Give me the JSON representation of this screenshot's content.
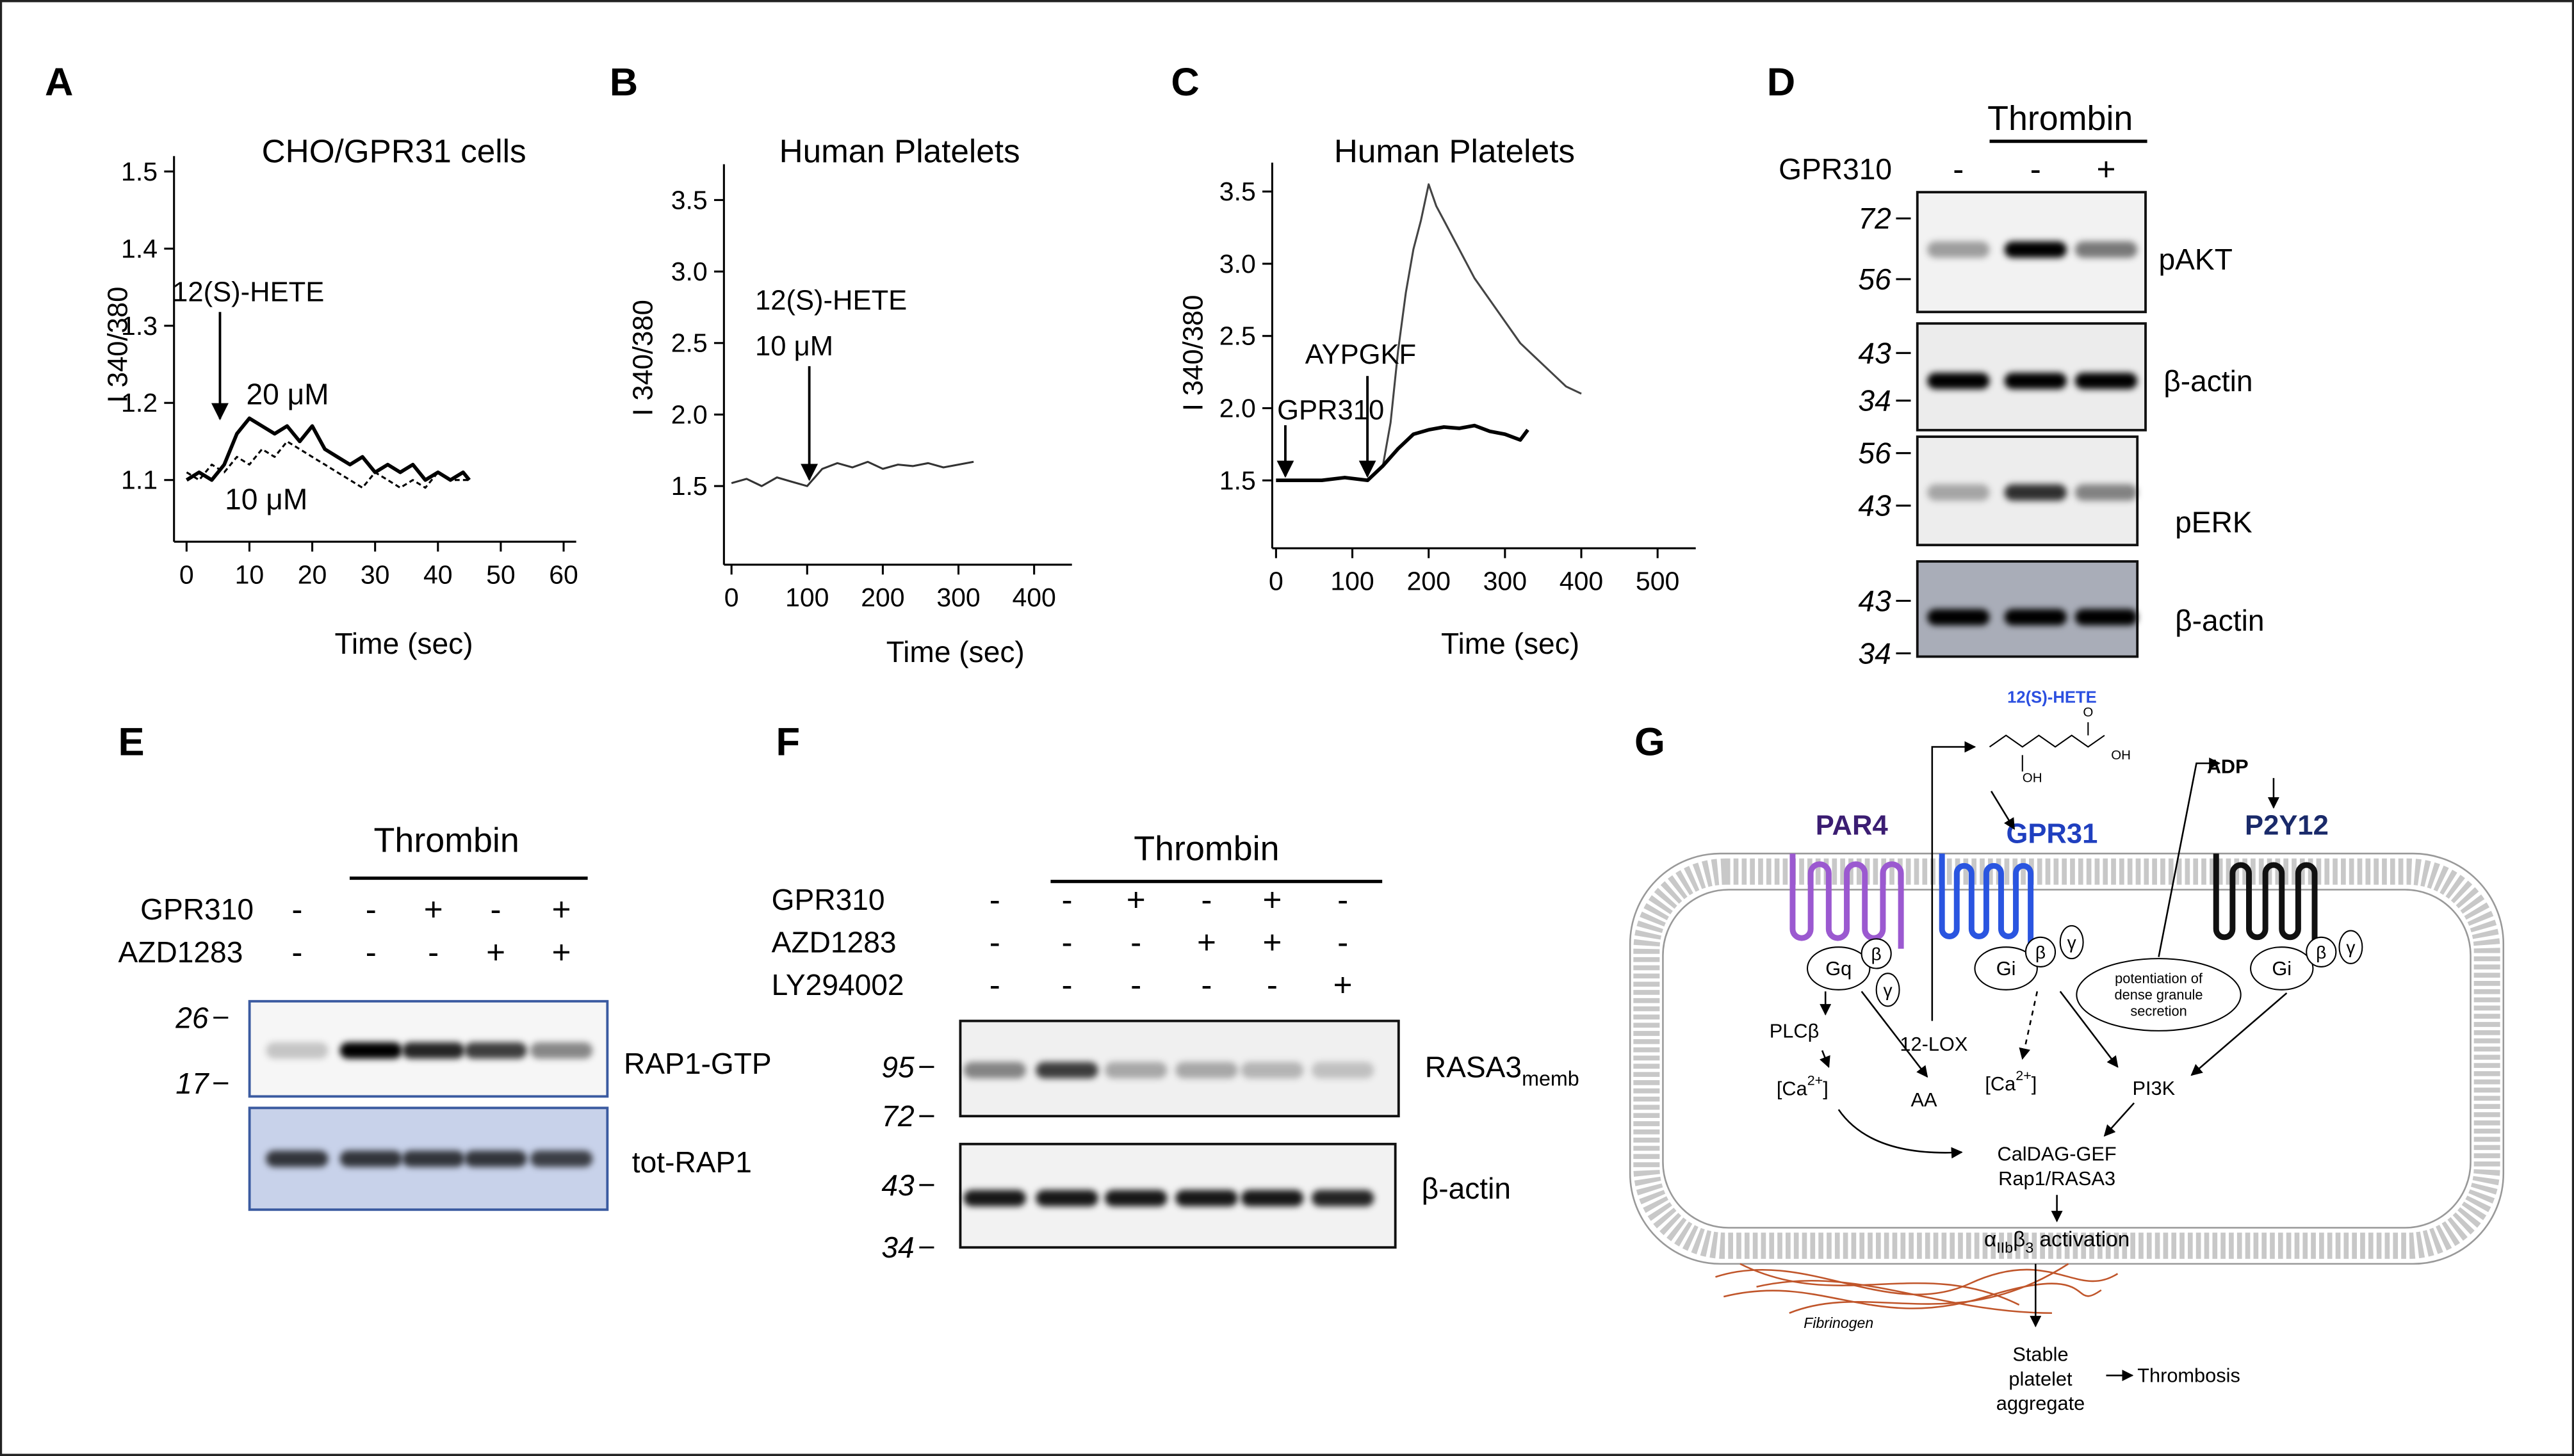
{
  "chart_data": [
    {
      "panel": "A",
      "type": "line",
      "title": "CHO/GPR31 cells",
      "xlabel": "Time (sec)",
      "ylabel": "I 340/380",
      "xlim": [
        -2,
        62
      ],
      "ylim": [
        1.02,
        1.52
      ],
      "xticks": [
        0,
        10,
        20,
        30,
        40,
        50,
        60
      ],
      "yticks": [
        1.1,
        1.2,
        1.3,
        1.4,
        1.5
      ],
      "annotations": [
        "12(S)-HETE"
      ],
      "series": [
        {
          "name": "20 μM",
          "color": "#000000",
          "style": "bold",
          "x": [
            0,
            2,
            4,
            6,
            8,
            10,
            12,
            14,
            16,
            18,
            20,
            22,
            24,
            26,
            28,
            30,
            32,
            34,
            36,
            38,
            40,
            42,
            44,
            45
          ],
          "values": [
            1.1,
            1.11,
            1.1,
            1.12,
            1.16,
            1.18,
            1.17,
            1.16,
            1.17,
            1.15,
            1.17,
            1.14,
            1.13,
            1.12,
            1.13,
            1.11,
            1.12,
            1.11,
            1.12,
            1.1,
            1.11,
            1.1,
            1.11,
            1.1
          ]
        },
        {
          "name": "10 μM",
          "color": "#000000",
          "style": "dotted",
          "x": [
            0,
            2,
            4,
            6,
            8,
            10,
            12,
            14,
            16,
            18,
            20,
            22,
            24,
            26,
            28,
            30,
            32,
            34,
            36,
            38,
            40,
            42,
            44,
            45
          ],
          "values": [
            1.11,
            1.1,
            1.12,
            1.11,
            1.13,
            1.12,
            1.14,
            1.13,
            1.15,
            1.14,
            1.13,
            1.12,
            1.11,
            1.1,
            1.09,
            1.11,
            1.1,
            1.09,
            1.1,
            1.09,
            1.11,
            1.1,
            1.1,
            1.1
          ]
        }
      ]
    },
    {
      "panel": "B",
      "type": "line",
      "title": "Human Platelets",
      "xlabel": "Time (sec)",
      "ylabel": "I 340/380",
      "xlim": [
        -10,
        450
      ],
      "ylim": [
        0.95,
        3.75
      ],
      "xticks": [
        0,
        100,
        200,
        300,
        400
      ],
      "yticks": [
        1.5,
        {
          "value": 2,
          "label": "2.0"
        },
        2.5,
        {
          "value": 3,
          "label": "3.0"
        },
        3.5
      ],
      "annotations": [
        "12(S)-HETE",
        "10 μM"
      ],
      "series": [
        {
          "color": "#333333",
          "style": "solid",
          "x": [
            0,
            20,
            40,
            60,
            80,
            100,
            120,
            140,
            160,
            180,
            200,
            220,
            240,
            260,
            280,
            300,
            320
          ],
          "values": [
            1.52,
            1.55,
            1.5,
            1.56,
            1.53,
            1.5,
            1.62,
            1.66,
            1.63,
            1.67,
            1.62,
            1.65,
            1.64,
            1.66,
            1.63,
            1.65,
            1.67
          ]
        }
      ]
    },
    {
      "panel": "C",
      "type": "line",
      "title": "Human Platelets",
      "xlabel": "Time (sec)",
      "ylabel": "I 340/380",
      "xlim": [
        -5,
        550
      ],
      "ylim": [
        1.03,
        3.7
      ],
      "xticks": [
        0,
        100,
        200,
        300,
        400,
        500
      ],
      "yticks": [
        1.5,
        {
          "value": 2,
          "label": "2.0"
        },
        2.5,
        {
          "value": 3,
          "label": "3.0"
        },
        3.5
      ],
      "annotations": [
        "AYPGKF",
        "GPR310"
      ],
      "series": [
        {
          "color": "#444444",
          "style": "solid",
          "x": [
            140,
            150,
            160,
            170,
            180,
            190,
            200,
            210,
            220,
            240,
            260,
            280,
            300,
            320,
            340,
            360,
            380,
            400
          ],
          "values": [
            1.6,
            1.9,
            2.4,
            2.8,
            3.1,
            3.3,
            3.55,
            3.4,
            3.3,
            3.1,
            2.9,
            2.75,
            2.6,
            2.45,
            2.35,
            2.25,
            2.15,
            2.1
          ]
        },
        {
          "color": "#000000",
          "style": "bold",
          "x": [
            0,
            30,
            60,
            90,
            120,
            140,
            160,
            180,
            200,
            220,
            240,
            260,
            280,
            300,
            320,
            330
          ],
          "values": [
            1.5,
            1.5,
            1.5,
            1.52,
            1.5,
            1.6,
            1.72,
            1.82,
            1.85,
            1.87,
            1.86,
            1.88,
            1.84,
            1.82,
            1.78,
            1.85
          ]
        }
      ]
    }
  ],
  "blots": [
    {
      "panel": "D",
      "header": "Thrombin",
      "rows": [
        {
          "label": "GPR310",
          "signs": [
            "-",
            "-",
            "+"
          ]
        }
      ],
      "blots": [
        {
          "label": "pAKT",
          "markers": [
            72,
            56
          ]
        },
        {
          "label": "β-actin",
          "markers": [
            43,
            34
          ]
        },
        {
          "label": "pERK",
          "markers": [
            56,
            43
          ]
        },
        {
          "label": "β-actin",
          "markers": [
            43,
            34
          ]
        }
      ]
    },
    {
      "panel": "E",
      "header": "Thrombin",
      "rows": [
        {
          "label": "GPR310",
          "signs": [
            "-",
            "-",
            "+",
            "-",
            "+"
          ]
        },
        {
          "label": "AZD1283",
          "signs": [
            "-",
            "-",
            "-",
            "+",
            "+"
          ]
        }
      ],
      "blots": [
        {
          "label": "RAP1-GTP",
          "markers": [
            26,
            17
          ]
        },
        {
          "label": "tot-RAP1"
        }
      ]
    },
    {
      "panel": "F",
      "header": "Thrombin",
      "rows": [
        {
          "label": "GPR310",
          "signs": [
            "-",
            "-",
            "+",
            "-",
            "+",
            "-"
          ]
        },
        {
          "label": "AZD1283",
          "signs": [
            "-",
            "-",
            "-",
            "+",
            "+",
            "-"
          ]
        },
        {
          "label": "LY294002",
          "signs": [
            "-",
            "-",
            "-",
            "-",
            "-",
            "+"
          ]
        }
      ],
      "blots": [
        {
          "label": "RASA3",
          "label_sub": "memb",
          "markers": [
            95,
            72
          ]
        },
        {
          "label": "β-actin",
          "markers": [
            43,
            34
          ]
        }
      ]
    }
  ],
  "diagram": {
    "panel": "G",
    "ligand": "12(S)-HETE",
    "structure_labels": [
      "O",
      "OH",
      "OH"
    ],
    "receptors": [
      "PAR4",
      "GPR31",
      "P2Y12"
    ],
    "agonist": "ADP",
    "g_proteins": [
      [
        "Gq",
        "β",
        "γ"
      ],
      [
        "Gi",
        "β",
        "γ"
      ],
      [
        "Gi",
        "β",
        "γ"
      ]
    ],
    "potentiation": [
      "potentiation of",
      "dense granule",
      "secretion"
    ],
    "plc": "PLCβ",
    "lox": "12-LOX",
    "calcium": [
      [
        "[Ca",
        "2+",
        "]"
      ],
      [
        "[Ca",
        "2+",
        "]"
      ]
    ],
    "aa": "AA",
    "pi3k": "PI3K",
    "effectors": [
      "CalDAG-GEF",
      "Rap1/RASA3"
    ],
    "integrin": [
      "α",
      "IIb",
      "β",
      "3",
      " activation"
    ],
    "fibrinogen": "Fibrinogen",
    "aggregate": [
      "Stable",
      "platelet",
      "aggregate"
    ],
    "outcome": "Thrombosis"
  }
}
